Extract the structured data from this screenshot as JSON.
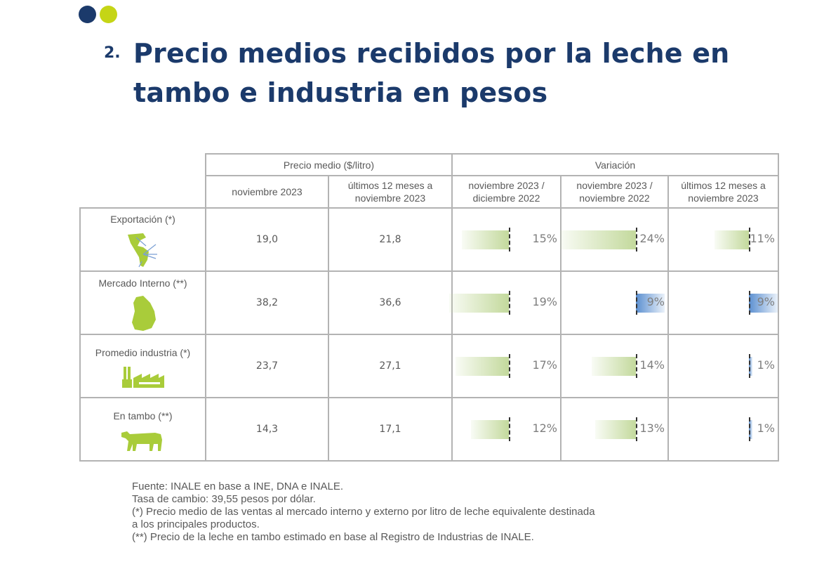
{
  "header": {
    "section_number": "2.",
    "title": "Precio medios recibidos por la leche en tambo e industria en pesos",
    "dots": [
      "#1b3a6b",
      "#c5d516"
    ]
  },
  "table": {
    "group_headers": {
      "price": "Precio medio ($/litro)",
      "variation": "Variación"
    },
    "columns": [
      "noviembre 2023",
      "últimos 12 meses a noviembre 2023",
      "noviembre 2023 / diciembre 2022",
      "noviembre 2023 / noviembre 2022",
      "últimos 12 meses a noviembre 2023"
    ],
    "rows": [
      {
        "label": "Exportación (*)",
        "icon": "latin-america-export-map-icon",
        "price_month": "19,0",
        "price_12m": "21,8",
        "variations": [
          {
            "value": -15,
            "text": "15%"
          },
          {
            "value": -24,
            "text": "24%"
          },
          {
            "value": -11,
            "text": "11%"
          }
        ]
      },
      {
        "label": "Mercado Interno (**)",
        "icon": "uruguay-map-icon",
        "price_month": "38,2",
        "price_12m": "36,6",
        "variations": [
          {
            "value": -19,
            "text": "19%"
          },
          {
            "value": 9,
            "text": "9%"
          },
          {
            "value": 9,
            "text": "9%"
          }
        ]
      },
      {
        "label": "Promedio industria (*)",
        "icon": "factory-icon",
        "price_month": "23,7",
        "price_12m": "27,1",
        "variations": [
          {
            "value": -17,
            "text": "17%"
          },
          {
            "value": -14,
            "text": "14%"
          },
          {
            "value": 1,
            "text": "1%"
          }
        ]
      },
      {
        "label": "En tambo (**)",
        "icon": "cow-icon",
        "price_month": "14,3",
        "price_12m": "17,1",
        "variations": [
          {
            "value": -12,
            "text": "12%"
          },
          {
            "value": -13,
            "text": "13%"
          },
          {
            "value": 1,
            "text": "1%"
          }
        ]
      }
    ],
    "colors": {
      "negative_bar": "#c3d99c",
      "positive_bar": "#5b8fd0",
      "price_text": "#2e74c4"
    }
  },
  "notes": [
    "Fuente: INALE en base a INE, DNA e INALE.",
    "Tasa de cambio: 39,55 pesos por dólar.",
    "(*) Precio medio de las ventas al mercado interno y externo por litro de leche equivalente destinada",
    "a los principales productos.",
    "(**) Precio de la leche en tambo estimado en base al Registro de Industrias de INALE."
  ]
}
